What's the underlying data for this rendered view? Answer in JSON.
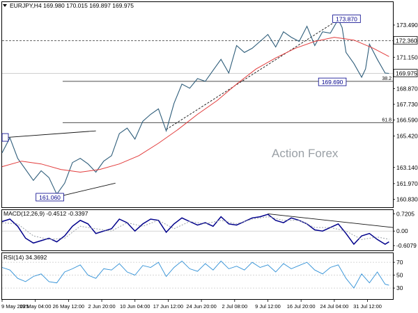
{
  "chart_data": [
    {
      "id": "price",
      "type": "line",
      "header": "EURJPY,H4  169.980 170.015 169.897 169.975",
      "watermark": "Action Forex",
      "ylim": [
        160.3,
        174.5
      ],
      "y_ticks": [
        "173.490",
        "171.150",
        "168.870",
        "167.730",
        "166.590",
        "165.420",
        "163.140",
        "161.970",
        "160.830"
      ],
      "y_tick_values": [
        173.49,
        171.15,
        168.87,
        167.73,
        166.59,
        165.42,
        163.14,
        161.97,
        160.83
      ],
      "x_tick_labels": [
        "9 May 2025",
        "19 May 04:00",
        "26 May 12:00",
        "2 Jun 20:00",
        "10 Jun 04:00",
        "17 Jun 12:00",
        "24 Jun 20:00",
        "2 Jul 08:00",
        "9 Jul 12:00",
        "16 Jul 20:00",
        "24 Jul 04:00",
        "31 Jul 12:00"
      ],
      "x_tick_positions": [
        0.0,
        0.085,
        0.17,
        0.255,
        0.34,
        0.425,
        0.51,
        0.595,
        0.68,
        0.765,
        0.85,
        0.935
      ],
      "x_domain": [
        0,
        1
      ],
      "series": [
        {
          "role": "price",
          "color": "#2e5d7a",
          "x": [
            0.0,
            0.02,
            0.04,
            0.06,
            0.08,
            0.1,
            0.12,
            0.14,
            0.16,
            0.18,
            0.2,
            0.22,
            0.24,
            0.26,
            0.28,
            0.3,
            0.32,
            0.34,
            0.36,
            0.38,
            0.4,
            0.42,
            0.44,
            0.46,
            0.48,
            0.5,
            0.52,
            0.54,
            0.56,
            0.58,
            0.6,
            0.62,
            0.64,
            0.66,
            0.68,
            0.7,
            0.72,
            0.74,
            0.76,
            0.78,
            0.8,
            0.82,
            0.84,
            0.86,
            0.87,
            0.88,
            0.9,
            0.92,
            0.93,
            0.94,
            0.96,
            0.98,
            0.99
          ],
          "values": [
            164.2,
            165.3,
            163.8,
            163.0,
            162.2,
            162.9,
            162.4,
            161.2,
            162.0,
            163.5,
            163.8,
            163.4,
            162.8,
            163.6,
            164.0,
            165.6,
            166.0,
            165.2,
            166.5,
            167.0,
            167.4,
            165.8,
            167.8,
            169.2,
            168.9,
            169.6,
            169.4,
            170.2,
            171.0,
            170.0,
            172.0,
            171.5,
            171.8,
            172.3,
            172.8,
            171.9,
            173.0,
            172.6,
            172.3,
            173.4,
            172.0,
            173.0,
            172.9,
            173.9,
            173.3,
            171.5,
            170.7,
            169.7,
            170.3,
            172.1,
            171.0,
            170.0,
            169.975
          ]
        },
        {
          "role": "moving-average",
          "color": "#e23b3b",
          "x": [
            0.0,
            0.05,
            0.1,
            0.15,
            0.2,
            0.25,
            0.3,
            0.35,
            0.4,
            0.45,
            0.5,
            0.55,
            0.6,
            0.65,
            0.7,
            0.75,
            0.8,
            0.85,
            0.9,
            0.95,
            0.99
          ],
          "values": [
            163.2,
            163.6,
            163.4,
            163.0,
            162.8,
            163.0,
            163.4,
            164.0,
            164.9,
            165.9,
            167.0,
            168.0,
            169.2,
            170.3,
            171.1,
            171.8,
            172.3,
            172.6,
            172.4,
            171.8,
            171.2
          ]
        }
      ],
      "levels": [
        {
          "label": "173.870",
          "value": 173.87,
          "x": 0.86
        },
        {
          "label": "172.360",
          "value": 172.36,
          "axis_badge": true
        },
        {
          "label": "169.975",
          "value": 169.975,
          "axis_badge": true
        },
        {
          "label": "169.690",
          "value": 169.69,
          "x": 0.87
        },
        {
          "label": "161.060",
          "value": 161.06,
          "x": 0.14
        },
        {
          "label": "38.2",
          "value": 169.4
        },
        {
          "label": "61.8",
          "value": 166.4
        }
      ],
      "trendlines": [
        {
          "x": [
            0.0,
            0.24
          ],
          "values": [
            165.3,
            165.8
          ]
        },
        {
          "x": [
            0.14,
            0.29
          ],
          "values": [
            161.0,
            162.0
          ]
        },
        {
          "x": [
            0.42,
            0.86
          ],
          "values": [
            165.9,
            173.87
          ],
          "dashed": true
        }
      ]
    },
    {
      "id": "macd",
      "type": "line",
      "title": "MACD(12,26,9) -0.4512 -0.3397",
      "ylim": [
        -0.75,
        0.85
      ],
      "y_ticks": [
        "0.7205",
        "0.00",
        "-0.6079"
      ],
      "y_tick_values": [
        0.7205,
        0.0,
        -0.6079
      ],
      "series": [
        {
          "role": "macd",
          "color": "#00008b",
          "x": [
            0.0,
            0.02,
            0.04,
            0.06,
            0.08,
            0.1,
            0.12,
            0.14,
            0.16,
            0.18,
            0.2,
            0.22,
            0.24,
            0.26,
            0.28,
            0.3,
            0.32,
            0.34,
            0.36,
            0.38,
            0.4,
            0.42,
            0.44,
            0.46,
            0.48,
            0.5,
            0.52,
            0.54,
            0.56,
            0.58,
            0.6,
            0.62,
            0.64,
            0.66,
            0.68,
            0.7,
            0.72,
            0.74,
            0.76,
            0.78,
            0.8,
            0.82,
            0.84,
            0.86,
            0.88,
            0.9,
            0.92,
            0.94,
            0.96,
            0.98,
            0.99
          ],
          "values": [
            0.4,
            0.5,
            0.2,
            -0.3,
            -0.5,
            -0.4,
            -0.3,
            -0.45,
            -0.2,
            0.2,
            0.45,
            0.3,
            -0.1,
            0.0,
            0.1,
            0.5,
            0.35,
            0.0,
            0.3,
            0.5,
            0.45,
            -0.05,
            0.3,
            0.55,
            0.4,
            0.25,
            0.35,
            0.2,
            0.6,
            0.3,
            0.25,
            0.4,
            0.55,
            0.6,
            0.7,
            0.45,
            0.35,
            0.55,
            0.45,
            0.3,
            0.05,
            0.0,
            0.15,
            0.3,
            -0.1,
            -0.55,
            -0.2,
            -0.1,
            -0.35,
            -0.55,
            -0.4512
          ]
        },
        {
          "role": "signal",
          "color": "#9aa0a6",
          "dashed": true,
          "x": [
            0.0,
            0.04,
            0.08,
            0.12,
            0.16,
            0.2,
            0.24,
            0.28,
            0.32,
            0.36,
            0.4,
            0.44,
            0.48,
            0.52,
            0.56,
            0.6,
            0.64,
            0.68,
            0.72,
            0.76,
            0.8,
            0.84,
            0.88,
            0.92,
            0.96,
            0.99
          ],
          "values": [
            0.35,
            0.3,
            -0.2,
            -0.35,
            -0.3,
            0.2,
            0.1,
            0.0,
            0.35,
            0.2,
            0.45,
            0.1,
            0.4,
            0.3,
            0.45,
            0.3,
            0.5,
            0.6,
            0.45,
            0.45,
            0.15,
            0.15,
            0.0,
            -0.35,
            -0.25,
            -0.3397
          ]
        }
      ],
      "trendline": {
        "x": [
          0.68,
          1.0
        ],
        "values": [
          0.72,
          0.15
        ]
      }
    },
    {
      "id": "rsi",
      "type": "line",
      "title": "RSI(14) 34.3692",
      "ylim": [
        15,
        82
      ],
      "y_ticks": [
        "70",
        "50",
        "30"
      ],
      "y_tick_values": [
        70,
        50,
        30
      ],
      "series": [
        {
          "role": "rsi",
          "color": "#2e8fd6",
          "x": [
            0.0,
            0.02,
            0.04,
            0.06,
            0.08,
            0.1,
            0.12,
            0.14,
            0.16,
            0.18,
            0.2,
            0.22,
            0.24,
            0.26,
            0.28,
            0.3,
            0.32,
            0.34,
            0.36,
            0.38,
            0.4,
            0.42,
            0.44,
            0.46,
            0.48,
            0.5,
            0.52,
            0.54,
            0.56,
            0.58,
            0.6,
            0.62,
            0.64,
            0.66,
            0.68,
            0.7,
            0.72,
            0.74,
            0.76,
            0.78,
            0.8,
            0.82,
            0.84,
            0.86,
            0.88,
            0.9,
            0.92,
            0.94,
            0.96,
            0.98,
            0.99
          ],
          "values": [
            62,
            58,
            45,
            40,
            48,
            52,
            40,
            38,
            55,
            60,
            66,
            50,
            45,
            60,
            58,
            68,
            55,
            50,
            65,
            62,
            70,
            48,
            62,
            72,
            60,
            56,
            68,
            58,
            72,
            60,
            64,
            58,
            70,
            62,
            66,
            55,
            68,
            60,
            65,
            70,
            58,
            52,
            62,
            66,
            45,
            30,
            52,
            38,
            55,
            36,
            34.3692
          ]
        }
      ]
    }
  ]
}
